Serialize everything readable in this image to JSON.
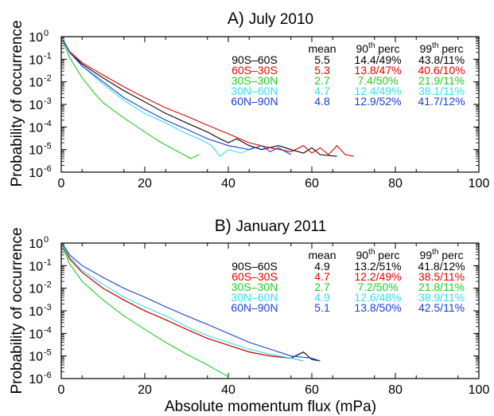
{
  "figure": {
    "ylabel": "Probability of occurrence",
    "xlabel": "Absolute momentum flux (mPa)",
    "table_headers": {
      "mean": "mean",
      "p90": "th",
      "p90_base": "90",
      "p90_suffix": " perc",
      "p99": "th",
      "p99_base": "99",
      "p99_suffix": " perc"
    }
  },
  "chart_data": [
    {
      "type": "line",
      "panel_letter": "A)",
      "title": "July 2010",
      "xlim": [
        0,
        100
      ],
      "ylim_exponent": [
        -6,
        0
      ],
      "yscale": "log",
      "x_ticks": [
        "0",
        "20",
        "40",
        "60",
        "80",
        "100"
      ],
      "y_ticks": [
        "10",
        "10",
        "10",
        "10",
        "10",
        "10",
        "10"
      ],
      "y_tick_exponents": [
        "-6",
        "-5",
        "-4",
        "-3",
        "-2",
        "-1",
        "0"
      ],
      "series": [
        {
          "name": "90S–60S",
          "color": "#000000",
          "mean": "5.5",
          "p90": "14.4/49%",
          "p99": "43.8/11%",
          "points": [
            [
              0.5,
              0.7
            ],
            [
              2,
              0.2
            ],
            [
              5,
              0.06
            ],
            [
              10,
              0.015
            ],
            [
              15,
              0.004
            ],
            [
              20,
              0.0013
            ],
            [
              25,
              0.0004
            ],
            [
              30,
              0.00015
            ],
            [
              35,
              6e-05
            ],
            [
              38,
              3e-05
            ],
            [
              40,
              2e-05
            ],
            [
              42,
              3e-05
            ],
            [
              45,
              1.5e-05
            ],
            [
              48,
              1e-05
            ],
            [
              52,
              1.5e-05
            ],
            [
              55,
              1e-05
            ],
            [
              58,
              7e-06
            ],
            [
              60,
              1.2e-05
            ],
            [
              62,
              6e-06
            ],
            [
              66,
              5e-06
            ]
          ]
        },
        {
          "name": "60S–30S",
          "color": "#e60000",
          "mean": "5.3",
          "p90": "13.8/47%",
          "p99": "40.6/10%",
          "points": [
            [
              0.5,
              0.7
            ],
            [
              2,
              0.22
            ],
            [
              5,
              0.07
            ],
            [
              10,
              0.02
            ],
            [
              15,
              0.006
            ],
            [
              20,
              0.002
            ],
            [
              25,
              0.0007
            ],
            [
              30,
              0.0003
            ],
            [
              35,
              0.00012
            ],
            [
              40,
              5e-05
            ],
            [
              45,
              2e-05
            ],
            [
              50,
              1.2e-05
            ],
            [
              55,
              8e-06
            ],
            [
              58,
              1.5e-05
            ],
            [
              60,
              7e-06
            ],
            [
              62,
              1.2e-05
            ],
            [
              64,
              6e-06
            ],
            [
              66,
              1.5e-05
            ],
            [
              68,
              6e-06
            ],
            [
              70,
              5e-06
            ]
          ]
        },
        {
          "name": "30S–30N",
          "color": "#22cc22",
          "mean": "2.7",
          "p90": "7.4/50%",
          "p99": "21.9/11%",
          "points": [
            [
              0.5,
              0.6
            ],
            [
              2,
              0.12
            ],
            [
              5,
              0.015
            ],
            [
              8,
              0.003
            ],
            [
              10,
              0.0012
            ],
            [
              15,
              0.00025
            ],
            [
              20,
              6e-05
            ],
            [
              24,
              2e-05
            ],
            [
              28,
              8e-06
            ],
            [
              31,
              4e-06
            ],
            [
              33,
              6e-06
            ]
          ]
        },
        {
          "name": "30N–60N",
          "color": "#33ddee",
          "mean": "4.7",
          "p90": "12.4/49%",
          "p99": "38.1/11%",
          "points": [
            [
              0.5,
              0.7
            ],
            [
              2,
              0.2
            ],
            [
              5,
              0.05
            ],
            [
              10,
              0.008
            ],
            [
              15,
              0.0015
            ],
            [
              20,
              0.0004
            ],
            [
              25,
              0.00015
            ],
            [
              30,
              5e-05
            ],
            [
              33,
              3e-05
            ],
            [
              36,
              1.5e-05
            ],
            [
              38,
              5e-06
            ],
            [
              40,
              1e-05
            ],
            [
              43,
              7e-06
            ],
            [
              46,
              1.2e-05
            ]
          ]
        },
        {
          "name": "60N–90N",
          "color": "#1a3fd6",
          "mean": "4.8",
          "p90": "12.9/52%",
          "p99": "41.7/12%",
          "points": [
            [
              0.5,
              0.7
            ],
            [
              2,
              0.2
            ],
            [
              5,
              0.05
            ],
            [
              10,
              0.01
            ],
            [
              15,
              0.002
            ],
            [
              20,
              0.0006
            ],
            [
              25,
              0.0002
            ],
            [
              30,
              8e-05
            ],
            [
              35,
              3e-05
            ],
            [
              40,
              1.5e-05
            ],
            [
              45,
              1e-05
            ],
            [
              48,
              1.5e-05
            ],
            [
              50,
              8e-06
            ],
            [
              52,
              1.2e-05
            ],
            [
              55,
              6e-06
            ]
          ]
        }
      ]
    },
    {
      "type": "line",
      "panel_letter": "B)",
      "title": "January 2011",
      "xlim": [
        0,
        100
      ],
      "ylim_exponent": [
        -6,
        0
      ],
      "yscale": "log",
      "x_ticks": [
        "0",
        "20",
        "40",
        "60",
        "80",
        "100"
      ],
      "y_ticks": [
        "10",
        "10",
        "10",
        "10",
        "10",
        "10",
        "10"
      ],
      "y_tick_exponents": [
        "-6",
        "-5",
        "-4",
        "-3",
        "-2",
        "-1",
        "0"
      ],
      "series": [
        {
          "name": "90S–60S",
          "color": "#000000",
          "mean": "4.9",
          "p90": "13.2/51%",
          "p99": "41.8/12%",
          "points": [
            [
              0.5,
              0.7
            ],
            [
              2,
              0.2
            ],
            [
              5,
              0.05
            ],
            [
              10,
              0.01
            ],
            [
              15,
              0.003
            ],
            [
              20,
              0.001
            ],
            [
              25,
              0.0004
            ],
            [
              30,
              0.00015
            ],
            [
              35,
              6e-05
            ],
            [
              40,
              3e-05
            ],
            [
              45,
              1.5e-05
            ],
            [
              50,
              1e-05
            ],
            [
              55,
              8e-06
            ],
            [
              58,
              1.5e-05
            ],
            [
              60,
              7e-06
            ],
            [
              62,
              6e-06
            ]
          ]
        },
        {
          "name": "60S–30S",
          "color": "#e60000",
          "mean": "4.7",
          "p90": "12.2/49%",
          "p99": "38.5/11%",
          "points": [
            [
              0.5,
              0.7
            ],
            [
              2,
              0.2
            ],
            [
              5,
              0.05
            ],
            [
              10,
              0.01
            ],
            [
              15,
              0.003
            ],
            [
              20,
              0.001
            ],
            [
              25,
              0.0004
            ],
            [
              30,
              0.00015
            ],
            [
              35,
              6e-05
            ],
            [
              40,
              3e-05
            ],
            [
              45,
              1.5e-05
            ],
            [
              50,
              1e-05
            ],
            [
              55,
              8e-06
            ],
            [
              58,
              6e-06
            ]
          ]
        },
        {
          "name": "30S–30N",
          "color": "#22cc22",
          "mean": "2.7",
          "p90": "7.2/50%",
          "p99": "21.8/11%",
          "points": [
            [
              0.5,
              0.6
            ],
            [
              2,
              0.12
            ],
            [
              5,
              0.02
            ],
            [
              10,
              0.003
            ],
            [
              15,
              0.0006
            ],
            [
              20,
              0.00015
            ],
            [
              25,
              4e-05
            ],
            [
              30,
              1.2e-05
            ],
            [
              35,
              4e-06
            ],
            [
              40,
              1.2e-06
            ]
          ]
        },
        {
          "name": "30N–60N",
          "color": "#33ddee",
          "mean": "4.9",
          "p90": "12.6/48%",
          "p99": "38.9/11%",
          "points": [
            [
              0.5,
              0.7
            ],
            [
              2,
              0.25
            ],
            [
              5,
              0.06
            ],
            [
              10,
              0.015
            ],
            [
              15,
              0.004
            ],
            [
              20,
              0.0015
            ],
            [
              25,
              0.0006
            ],
            [
              30,
              0.0002
            ],
            [
              35,
              8e-05
            ],
            [
              40,
              4e-05
            ],
            [
              45,
              2e-05
            ],
            [
              50,
              1.2e-05
            ],
            [
              55,
              8e-06
            ],
            [
              58,
              6e-06
            ]
          ]
        },
        {
          "name": "60N–90N",
          "color": "#1a3fd6",
          "mean": "5.1",
          "p90": "13.8/50%",
          "p99": "42.5/11%",
          "points": [
            [
              0.5,
              0.8
            ],
            [
              2,
              0.3
            ],
            [
              5,
              0.1
            ],
            [
              10,
              0.03
            ],
            [
              15,
              0.01
            ],
            [
              20,
              0.004
            ],
            [
              25,
              0.0015
            ],
            [
              30,
              0.0006
            ],
            [
              35,
              0.00025
            ],
            [
              40,
              0.0001
            ],
            [
              45,
              4e-05
            ],
            [
              50,
              2e-05
            ],
            [
              55,
              1e-05
            ],
            [
              60,
              8e-06
            ],
            [
              62,
              6e-06
            ]
          ]
        }
      ]
    }
  ]
}
